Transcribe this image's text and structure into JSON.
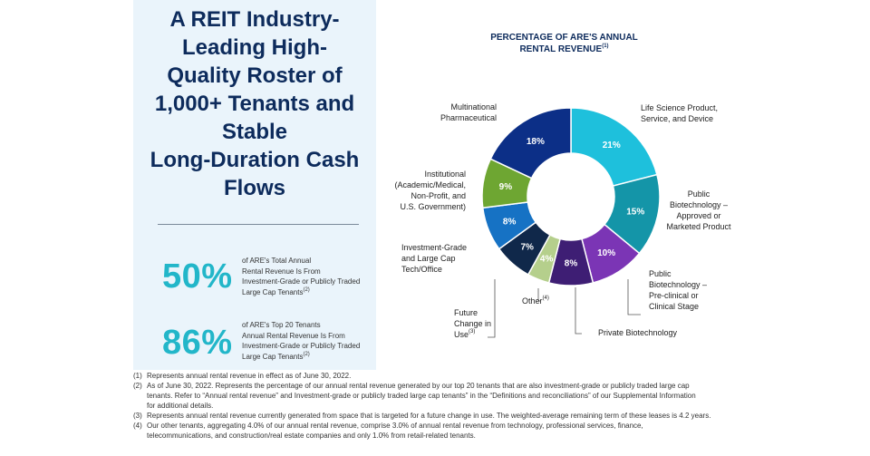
{
  "headline": [
    "A REIT Industry-",
    "Leading High-",
    "Quality Roster of",
    "1,000+ Tenants and",
    "Stable",
    "Long-Duration Cash",
    "Flows"
  ],
  "stats": [
    {
      "value": "50%",
      "lines": [
        "of ARE's Total Annual",
        "Rental Revenue Is From",
        "Investment-Grade or Publicly Traded",
        "Large Cap Tenants"
      ],
      "note": "(2)"
    },
    {
      "value": "86%",
      "lines": [
        "of ARE's Top 20 Tenants",
        "Annual Rental Revenue Is From",
        "Investment-Grade or Publicly Traded",
        "Large Cap Tenants"
      ],
      "note": "(2)"
    }
  ],
  "chart_data": {
    "type": "pie",
    "donut": true,
    "title_lines": [
      "PERCENTAGE OF ARE'S ANNUAL",
      "RENTAL REVENUE"
    ],
    "title_note": "(1)",
    "slices": [
      {
        "label_lines": [
          "Life Science Product,",
          "Service, and Device"
        ],
        "note": "",
        "value": 21,
        "value_label": "21%",
        "color": "#1ec0dc"
      },
      {
        "label_lines": [
          "Public",
          "Biotechnology –",
          "Approved or",
          "Marketed Product"
        ],
        "note": "",
        "value": 15,
        "value_label": "15%",
        "color": "#1495a8"
      },
      {
        "label_lines": [
          "Public",
          "Biotechnology –",
          "Pre-clinical or",
          "Clinical Stage"
        ],
        "note": "",
        "value": 10,
        "value_label": "10%",
        "color": "#7b35b5"
      },
      {
        "label_lines": [
          "Private Biotechnology"
        ],
        "note": "",
        "value": 8,
        "value_label": "8%",
        "color": "#3e1e74"
      },
      {
        "label_lines": [
          "Other"
        ],
        "note": "(4)",
        "value": 4,
        "value_label": "4%",
        "color": "#b5cf8c"
      },
      {
        "label_lines": [
          "Future",
          "Change in",
          "Use"
        ],
        "note": "(3)",
        "value": 7,
        "value_label": "7%",
        "color": "#10284a"
      },
      {
        "label_lines": [
          "Investment-Grade",
          "and Large Cap",
          "Tech/Office"
        ],
        "note": "",
        "value": 8,
        "value_label": "8%",
        "color": "#1672c4"
      },
      {
        "label_lines": [
          "Institutional",
          "(Academic/Medical,",
          "Non-Profit, and",
          "U.S. Government)"
        ],
        "note": "",
        "value": 9,
        "value_label": "9%",
        "color": "#6ea632"
      },
      {
        "label_lines": [
          "Multinational",
          "Pharmaceutical"
        ],
        "note": "",
        "value": 18,
        "value_label": "18%",
        "color": "#0c2f87"
      }
    ]
  },
  "footnotes": [
    {
      "num": "(1)",
      "lines": [
        "Represents annual rental revenue in effect as of June 30, 2022."
      ]
    },
    {
      "num": "(2)",
      "lines": [
        "As of June 30, 2022. Represents the percentage of our annual rental revenue generated by our top 20 tenants that are also investment-grade or publicly traded large cap",
        "tenants. Refer to “Annual rental revenue” and Investment-grade or publicly traded large cap tenants” in the “Definitions and reconciliations” of our Supplemental Information",
        "for additional details."
      ]
    },
    {
      "num": "(3)",
      "lines": [
        "Represents annual rental revenue currently generated from space that is targeted for a future change in use. The weighted-average remaining term of these leases is 4.2 years."
      ]
    },
    {
      "num": "(4)",
      "lines": [
        "Our other tenants, aggregating 4.0% of our annual rental revenue, comprise 3.0% of annual rental revenue from technology, professional services, finance,",
        "telecommunications, and construction/real estate companies and only 1.0% from retail-related tenants."
      ]
    }
  ]
}
